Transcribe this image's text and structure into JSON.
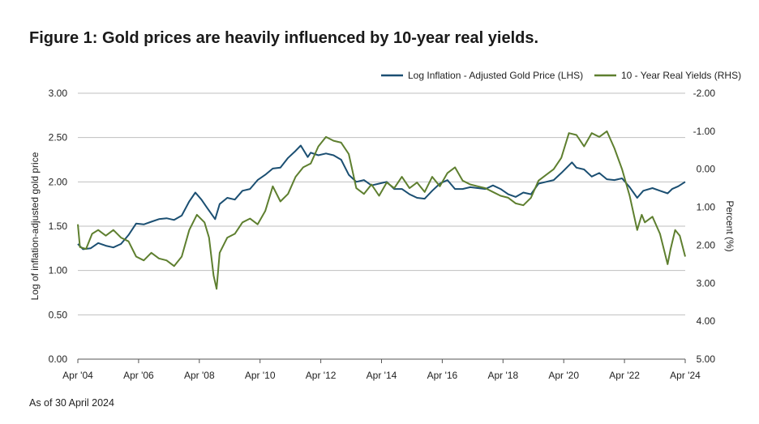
{
  "figure": {
    "title": "Figure 1: Gold prices are heavily influenced by 10-year real yields.",
    "footnote": "As of 30 April 2024"
  },
  "chart_data": {
    "type": "line",
    "grid": true,
    "legend_position": "top-right",
    "x_tick_labels": [
      "Apr '04",
      "Apr '06",
      "Apr '08",
      "Apr '10",
      "Apr '12",
      "Apr '14",
      "Apr '16",
      "Apr '18",
      "Apr '20",
      "Apr '22",
      "Apr '24"
    ],
    "y_left": {
      "label": "Log of inflation-adjusted gold price",
      "range": [
        0,
        3
      ],
      "ticks": [
        "0.00",
        "0.50",
        "1.00",
        "1.50",
        "2.00",
        "2.50",
        "3.00"
      ]
    },
    "y_right": {
      "label": "Percent (%)",
      "range": [
        -2,
        5
      ],
      "inverted": true,
      "ticks": [
        "-2.00",
        "-1.00",
        "0.00",
        "1.00",
        "2.00",
        "3.00",
        "4.00",
        "5.00"
      ]
    },
    "colors": {
      "gold": "#1b4f72",
      "yield": "#5e7f2f",
      "grid": "#bfbfbf"
    },
    "series": [
      {
        "name": "Log Inflation - Adjusted Gold Price (LHS)",
        "axis": "left",
        "points": [
          [
            2004.33,
            1.3
          ],
          [
            2004.5,
            1.24
          ],
          [
            2004.75,
            1.25
          ],
          [
            2005.0,
            1.31
          ],
          [
            2005.25,
            1.28
          ],
          [
            2005.5,
            1.26
          ],
          [
            2005.75,
            1.3
          ],
          [
            2006.0,
            1.4
          ],
          [
            2006.25,
            1.53
          ],
          [
            2006.5,
            1.52
          ],
          [
            2006.75,
            1.55
          ],
          [
            2007.0,
            1.58
          ],
          [
            2007.25,
            1.59
          ],
          [
            2007.5,
            1.57
          ],
          [
            2007.75,
            1.62
          ],
          [
            2008.0,
            1.78
          ],
          [
            2008.2,
            1.88
          ],
          [
            2008.4,
            1.8
          ],
          [
            2008.6,
            1.7
          ],
          [
            2008.85,
            1.58
          ],
          [
            2009.0,
            1.75
          ],
          [
            2009.25,
            1.82
          ],
          [
            2009.5,
            1.8
          ],
          [
            2009.75,
            1.9
          ],
          [
            2010.0,
            1.92
          ],
          [
            2010.25,
            2.02
          ],
          [
            2010.5,
            2.08
          ],
          [
            2010.75,
            2.15
          ],
          [
            2011.0,
            2.16
          ],
          [
            2011.25,
            2.27
          ],
          [
            2011.5,
            2.35
          ],
          [
            2011.67,
            2.41
          ],
          [
            2011.9,
            2.28
          ],
          [
            2012.0,
            2.33
          ],
          [
            2012.25,
            2.3
          ],
          [
            2012.5,
            2.32
          ],
          [
            2012.75,
            2.3
          ],
          [
            2013.0,
            2.25
          ],
          [
            2013.25,
            2.08
          ],
          [
            2013.5,
            2.0
          ],
          [
            2013.75,
            2.02
          ],
          [
            2014.0,
            1.96
          ],
          [
            2014.25,
            1.98
          ],
          [
            2014.5,
            2.0
          ],
          [
            2014.75,
            1.92
          ],
          [
            2015.0,
            1.92
          ],
          [
            2015.25,
            1.86
          ],
          [
            2015.5,
            1.82
          ],
          [
            2015.75,
            1.81
          ],
          [
            2016.0,
            1.9
          ],
          [
            2016.25,
            1.98
          ],
          [
            2016.5,
            2.02
          ],
          [
            2016.75,
            1.92
          ],
          [
            2017.0,
            1.92
          ],
          [
            2017.25,
            1.94
          ],
          [
            2017.5,
            1.93
          ],
          [
            2017.75,
            1.92
          ],
          [
            2018.0,
            1.96
          ],
          [
            2018.25,
            1.92
          ],
          [
            2018.5,
            1.86
          ],
          [
            2018.75,
            1.83
          ],
          [
            2019.0,
            1.88
          ],
          [
            2019.25,
            1.86
          ],
          [
            2019.5,
            1.98
          ],
          [
            2019.75,
            2.0
          ],
          [
            2020.0,
            2.02
          ],
          [
            2020.25,
            2.1
          ],
          [
            2020.6,
            2.22
          ],
          [
            2020.75,
            2.16
          ],
          [
            2021.0,
            2.14
          ],
          [
            2021.25,
            2.06
          ],
          [
            2021.5,
            2.1
          ],
          [
            2021.75,
            2.03
          ],
          [
            2022.0,
            2.02
          ],
          [
            2022.25,
            2.04
          ],
          [
            2022.5,
            1.94
          ],
          [
            2022.75,
            1.82
          ],
          [
            2022.95,
            1.9
          ],
          [
            2023.25,
            1.93
          ],
          [
            2023.5,
            1.9
          ],
          [
            2023.75,
            1.87
          ],
          [
            2023.9,
            1.92
          ],
          [
            2024.1,
            1.95
          ],
          [
            2024.33,
            2.0
          ]
        ]
      },
      {
        "name": "10 - Year Real Yields (RHS)",
        "axis": "right",
        "points": [
          [
            2004.33,
            1.45
          ],
          [
            2004.4,
            2.05
          ],
          [
            2004.6,
            2.1
          ],
          [
            2004.8,
            1.7
          ],
          [
            2005.0,
            1.6
          ],
          [
            2005.25,
            1.75
          ],
          [
            2005.5,
            1.6
          ],
          [
            2005.75,
            1.8
          ],
          [
            2006.0,
            1.9
          ],
          [
            2006.25,
            2.3
          ],
          [
            2006.5,
            2.4
          ],
          [
            2006.75,
            2.2
          ],
          [
            2007.0,
            2.35
          ],
          [
            2007.25,
            2.4
          ],
          [
            2007.5,
            2.55
          ],
          [
            2007.75,
            2.3
          ],
          [
            2008.0,
            1.6
          ],
          [
            2008.25,
            1.2
          ],
          [
            2008.5,
            1.4
          ],
          [
            2008.65,
            1.8
          ],
          [
            2008.8,
            2.8
          ],
          [
            2008.9,
            3.15
          ],
          [
            2009.0,
            2.2
          ],
          [
            2009.25,
            1.8
          ],
          [
            2009.5,
            1.7
          ],
          [
            2009.75,
            1.4
          ],
          [
            2010.0,
            1.3
          ],
          [
            2010.25,
            1.45
          ],
          [
            2010.5,
            1.1
          ],
          [
            2010.75,
            0.45
          ],
          [
            2011.0,
            0.85
          ],
          [
            2011.25,
            0.65
          ],
          [
            2011.5,
            0.2
          ],
          [
            2011.75,
            -0.05
          ],
          [
            2012.0,
            -0.15
          ],
          [
            2012.25,
            -0.6
          ],
          [
            2012.5,
            -0.85
          ],
          [
            2012.75,
            -0.75
          ],
          [
            2013.0,
            -0.7
          ],
          [
            2013.25,
            -0.4
          ],
          [
            2013.5,
            0.5
          ],
          [
            2013.75,
            0.65
          ],
          [
            2014.0,
            0.4
          ],
          [
            2014.25,
            0.7
          ],
          [
            2014.5,
            0.35
          ],
          [
            2014.75,
            0.5
          ],
          [
            2015.0,
            0.2
          ],
          [
            2015.25,
            0.5
          ],
          [
            2015.5,
            0.35
          ],
          [
            2015.75,
            0.6
          ],
          [
            2016.0,
            0.2
          ],
          [
            2016.25,
            0.45
          ],
          [
            2016.5,
            0.1
          ],
          [
            2016.75,
            -0.05
          ],
          [
            2017.0,
            0.3
          ],
          [
            2017.25,
            0.4
          ],
          [
            2017.5,
            0.45
          ],
          [
            2017.75,
            0.5
          ],
          [
            2018.0,
            0.6
          ],
          [
            2018.25,
            0.7
          ],
          [
            2018.5,
            0.75
          ],
          [
            2018.75,
            0.9
          ],
          [
            2019.0,
            0.95
          ],
          [
            2019.25,
            0.75
          ],
          [
            2019.5,
            0.3
          ],
          [
            2019.75,
            0.15
          ],
          [
            2020.0,
            0.0
          ],
          [
            2020.25,
            -0.3
          ],
          [
            2020.5,
            -0.95
          ],
          [
            2020.75,
            -0.9
          ],
          [
            2021.0,
            -0.6
          ],
          [
            2021.25,
            -0.95
          ],
          [
            2021.5,
            -0.85
          ],
          [
            2021.75,
            -1.0
          ],
          [
            2022.0,
            -0.55
          ],
          [
            2022.25,
            0.0
          ],
          [
            2022.5,
            0.7
          ],
          [
            2022.75,
            1.6
          ],
          [
            2022.9,
            1.2
          ],
          [
            2023.0,
            1.4
          ],
          [
            2023.25,
            1.25
          ],
          [
            2023.5,
            1.7
          ],
          [
            2023.75,
            2.5
          ],
          [
            2023.85,
            2.1
          ],
          [
            2024.0,
            1.6
          ],
          [
            2024.15,
            1.75
          ],
          [
            2024.33,
            2.3
          ]
        ]
      }
    ]
  }
}
